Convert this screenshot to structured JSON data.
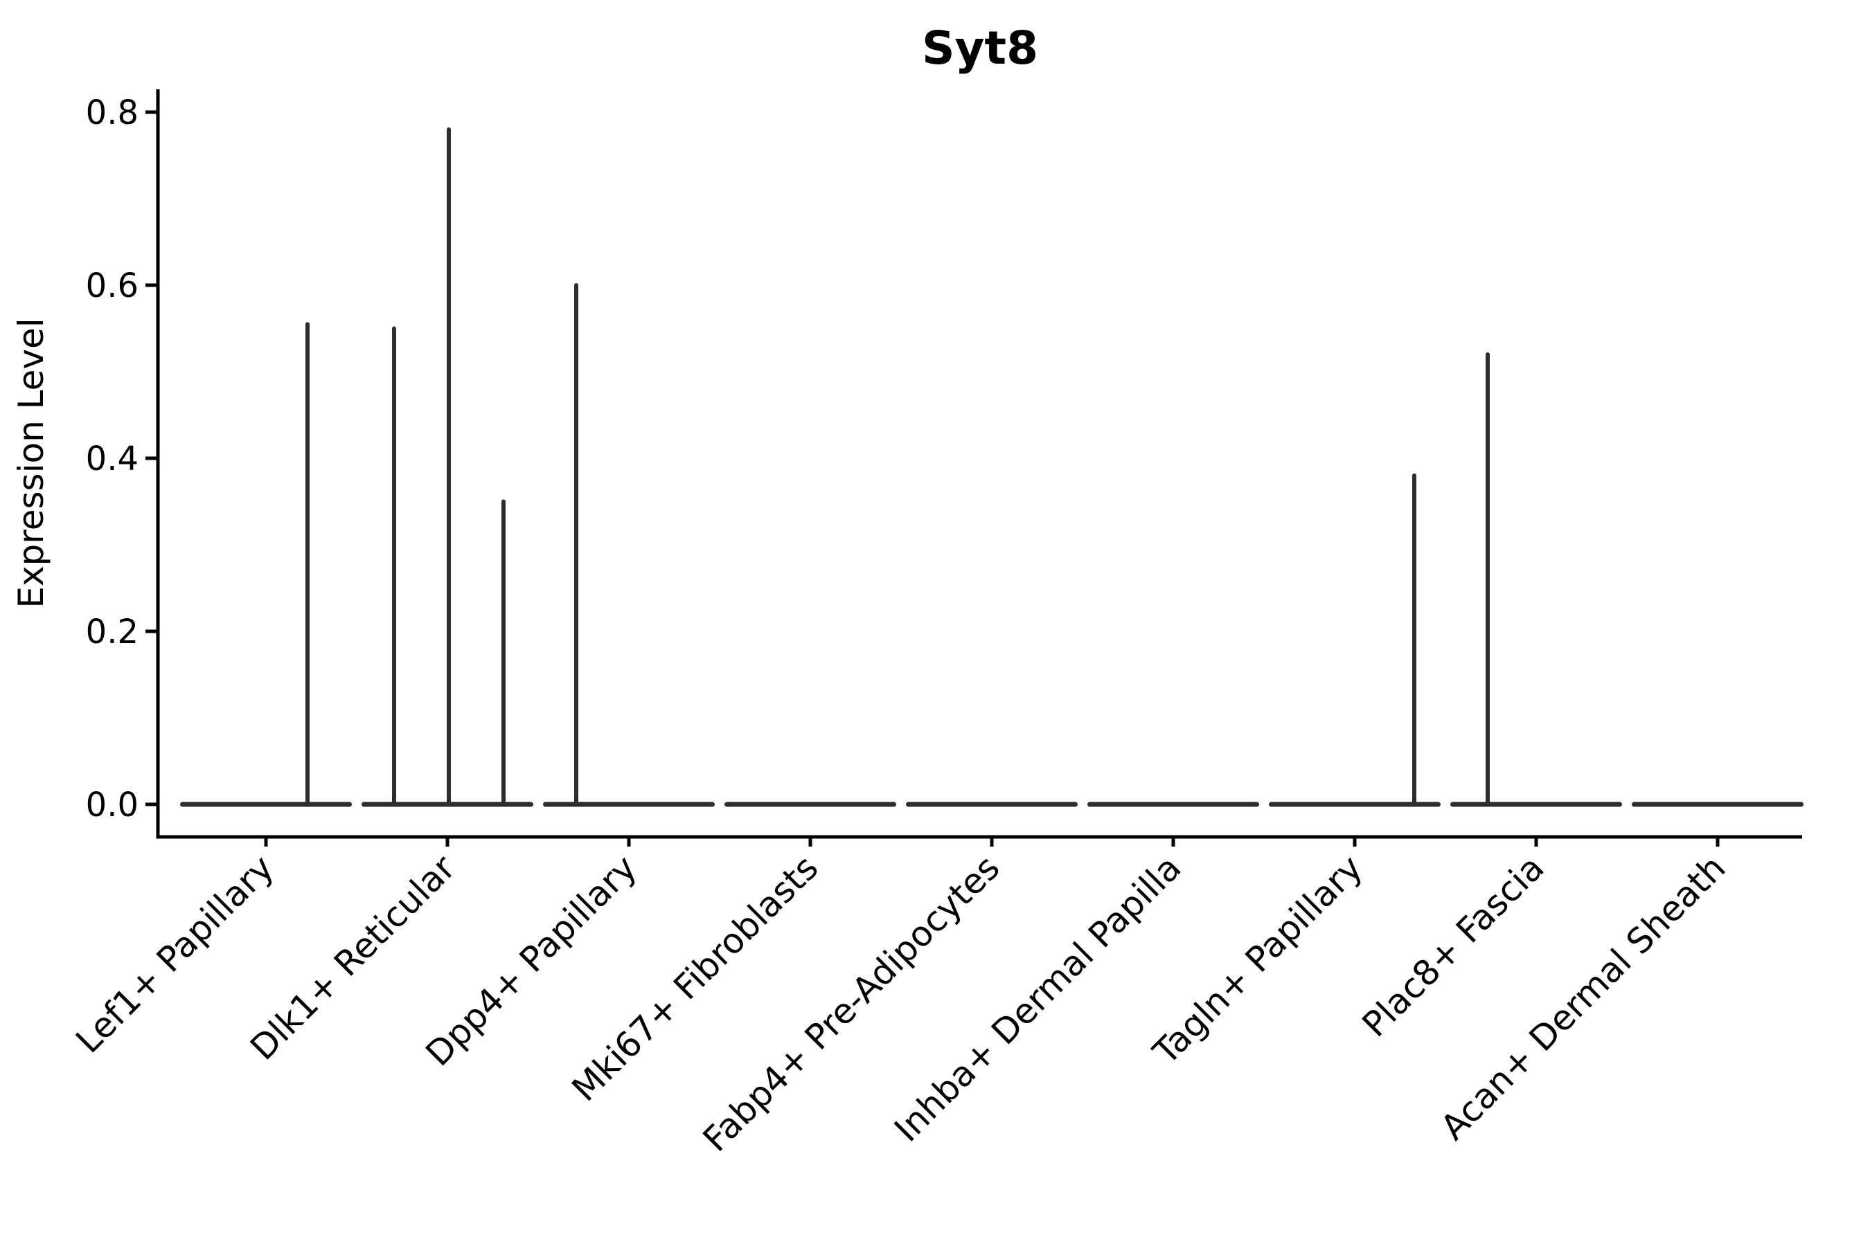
{
  "chart_data": {
    "type": "violin",
    "title": "Syt8",
    "xlabel": "",
    "ylabel": "Expression Level",
    "ylim": [
      0,
      0.84
    ],
    "ytick_values": [
      0,
      0.2,
      0.4,
      0.6,
      0.8
    ],
    "ytick_labels": [
      "0.0",
      "0.2",
      "0.4",
      "0.6",
      "0.8"
    ],
    "grid": false,
    "legend": "none",
    "categories": [
      "Lef1+ Papillary",
      "Dlk1+ Reticular",
      "Dpp4+ Papillary",
      "Mki67+ Fibroblasts",
      "Fabp4+ Pre-Adipocytes",
      "Inhba+ Dermal Papilla",
      "Tagln+ Papillary",
      "Plac8+ Fascia",
      "Acan+ Dermal Sheath"
    ],
    "violins": [
      {
        "category": "Lef1+ Papillary",
        "baseline_value": 0.0,
        "spikes": [
          {
            "dx": 60,
            "value": 0.555
          }
        ]
      },
      {
        "category": "Dlk1+ Reticular",
        "baseline_value": 0.0,
        "spikes": [
          {
            "dx": -77,
            "value": 0.55
          },
          {
            "dx": 2,
            "value": 0.78
          },
          {
            "dx": 81,
            "value": 0.35
          }
        ]
      },
      {
        "category": "Dpp4+ Papillary",
        "baseline_value": 0.0,
        "spikes": [
          {
            "dx": -76,
            "value": 0.6
          }
        ]
      },
      {
        "category": "Mki67+ Fibroblasts",
        "baseline_value": 0.0,
        "spikes": []
      },
      {
        "category": "Fabp4+ Pre-Adipocytes",
        "baseline_value": 0.0,
        "spikes": []
      },
      {
        "category": "Inhba+ Dermal Papilla",
        "baseline_value": 0.0,
        "spikes": []
      },
      {
        "category": "Tagln+ Papillary",
        "baseline_value": 0.0,
        "spikes": [
          {
            "dx": 86,
            "value": 0.38
          }
        ]
      },
      {
        "category": "Plac8+ Fascia",
        "baseline_value": 0.0,
        "spikes": [
          {
            "dx": -70,
            "value": 0.52
          }
        ]
      },
      {
        "category": "Acan+ Dermal Sheath",
        "baseline_value": 0.0,
        "spikes": []
      }
    ],
    "colors": {
      "violin": "#2e2e2e",
      "axis": "#000000",
      "text": "#000000",
      "background": "#ffffff"
    }
  }
}
